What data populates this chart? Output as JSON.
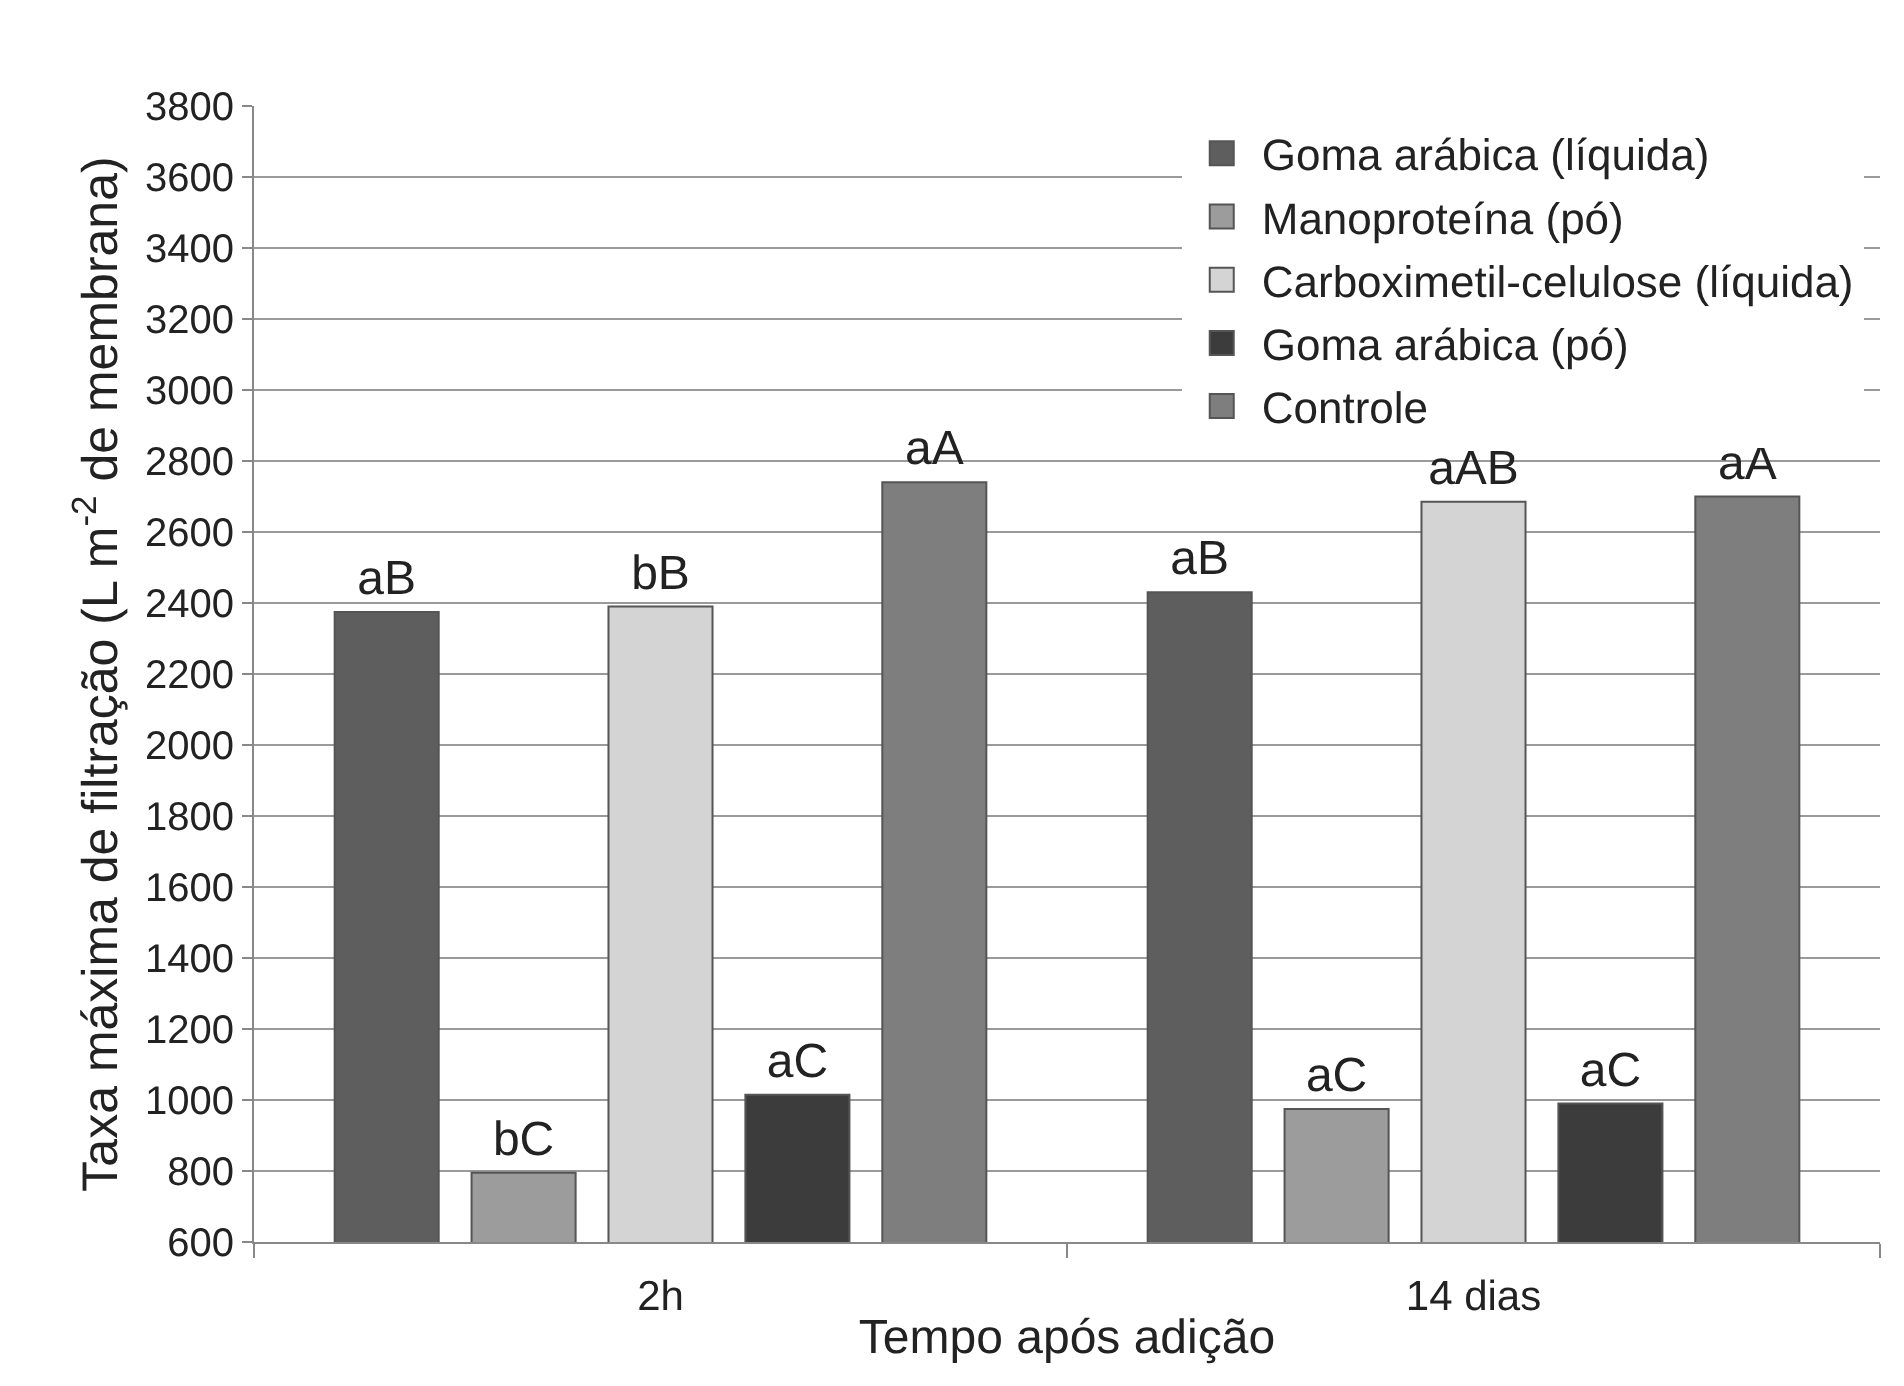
{
  "chart_data": {
    "type": "bar",
    "xlabel": "Tempo após adição",
    "ylabel": "Taxa máxima de filtração (L m$^{-2}$ de membrana)",
    "categories": [
      "2h",
      "14 dias"
    ],
    "series": [
      {
        "name": "Goma arábica (líquida)",
        "color": "#5e5e5e",
        "values": [
          2375,
          2430
        ],
        "value_labels": [
          "aB",
          "aB"
        ]
      },
      {
        "name": "Manoproteína (pó)",
        "color": "#9c9c9c",
        "values": [
          795,
          975
        ],
        "value_labels": [
          "bC",
          "aC"
        ]
      },
      {
        "name": "Carboximetil-celulose (líquida)",
        "color": "#d4d4d4",
        "values": [
          2390,
          2685
        ],
        "value_labels": [
          "bB",
          "aAB"
        ]
      },
      {
        "name": "Goma arábica (pó)",
        "color": "#3c3c3c",
        "values": [
          1015,
          990
        ],
        "value_labels": [
          "aC",
          "aC"
        ]
      },
      {
        "name": "Controle",
        "color": "#7e7e7e",
        "values": [
          2740,
          2700
        ],
        "value_labels": [
          "aA",
          "aA"
        ]
      }
    ],
    "ylim": [
      600,
      3800
    ],
    "yticks": [
      600,
      800,
      1000,
      1200,
      1400,
      1600,
      1800,
      2000,
      2200,
      2400,
      2600,
      2800,
      3000,
      3200,
      3400,
      3600,
      3800
    ],
    "grid": "y",
    "legend": "top right"
  }
}
